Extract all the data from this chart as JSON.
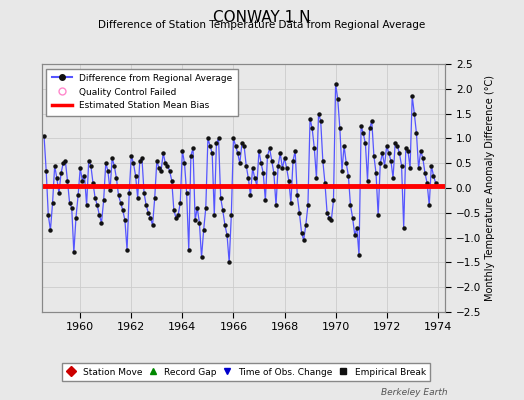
{
  "title": "CONWAY 1 N",
  "subtitle": "Difference of Station Temperature Data from Regional Average",
  "ylabel": "Monthly Temperature Anomaly Difference (°C)",
  "watermark": "Berkeley Earth",
  "xlim": [
    1958.5,
    1974.3
  ],
  "ylim": [
    -2.5,
    2.5
  ],
  "yticks": [
    -2.5,
    -2,
    -1.5,
    -1,
    -0.5,
    0,
    0.5,
    1,
    1.5,
    2,
    2.5
  ],
  "xticks": [
    1960,
    1962,
    1964,
    1966,
    1968,
    1970,
    1972,
    1974
  ],
  "bias_value": 0.04,
  "bg_color": "#e8e8e8",
  "plot_bg_color": "#e8e8e8",
  "line_color": "#5555ff",
  "dot_color": "#111111",
  "bias_color": "#ff0000",
  "grid_color": "#cccccc",
  "legend1_items": [
    {
      "label": "Difference from Regional Average",
      "lcolor": "#0000cc",
      "mcolor": "#111111"
    },
    {
      "label": "Quality Control Failed",
      "lcolor": "none",
      "mcolor": "#ff88cc"
    },
    {
      "label": "Estimated Station Mean Bias",
      "lcolor": "#ff0000",
      "mcolor": "none"
    }
  ],
  "legend2_items": [
    {
      "label": "Station Move",
      "color": "#cc0000",
      "marker": "D"
    },
    {
      "label": "Record Gap",
      "color": "#008800",
      "marker": "^"
    },
    {
      "label": "Time of Obs. Change",
      "color": "#0000cc",
      "marker": "v"
    },
    {
      "label": "Empirical Break",
      "color": "#111111",
      "marker": "s"
    }
  ],
  "data_years": [
    1958.583,
    1958.667,
    1958.75,
    1958.833,
    1958.917,
    1959.0,
    1959.083,
    1959.167,
    1959.25,
    1959.333,
    1959.417,
    1959.5,
    1959.583,
    1959.667,
    1959.75,
    1959.833,
    1959.917,
    1960.0,
    1960.083,
    1960.167,
    1960.25,
    1960.333,
    1960.417,
    1960.5,
    1960.583,
    1960.667,
    1960.75,
    1960.833,
    1960.917,
    1961.0,
    1961.083,
    1961.167,
    1961.25,
    1961.333,
    1961.417,
    1961.5,
    1961.583,
    1961.667,
    1961.75,
    1961.833,
    1961.917,
    1962.0,
    1962.083,
    1962.167,
    1962.25,
    1962.333,
    1962.417,
    1962.5,
    1962.583,
    1962.667,
    1962.75,
    1962.833,
    1962.917,
    1963.0,
    1963.083,
    1963.167,
    1963.25,
    1963.333,
    1963.417,
    1963.5,
    1963.583,
    1963.667,
    1963.75,
    1963.833,
    1963.917,
    1964.0,
    1964.083,
    1964.167,
    1964.25,
    1964.333,
    1964.417,
    1964.5,
    1964.583,
    1964.667,
    1964.75,
    1964.833,
    1964.917,
    1965.0,
    1965.083,
    1965.167,
    1965.25,
    1965.333,
    1965.417,
    1965.5,
    1965.583,
    1965.667,
    1965.75,
    1965.833,
    1965.917,
    1966.0,
    1966.083,
    1966.167,
    1966.25,
    1966.333,
    1966.417,
    1966.5,
    1966.583,
    1966.667,
    1966.75,
    1966.833,
    1966.917,
    1967.0,
    1967.083,
    1967.167,
    1967.25,
    1967.333,
    1967.417,
    1967.5,
    1967.583,
    1967.667,
    1967.75,
    1967.833,
    1967.917,
    1968.0,
    1968.083,
    1968.167,
    1968.25,
    1968.333,
    1968.417,
    1968.5,
    1968.583,
    1968.667,
    1968.75,
    1968.833,
    1968.917,
    1969.0,
    1969.083,
    1969.167,
    1969.25,
    1969.333,
    1969.417,
    1969.5,
    1969.583,
    1969.667,
    1969.75,
    1969.833,
    1969.917,
    1970.0,
    1970.083,
    1970.167,
    1970.25,
    1970.333,
    1970.417,
    1970.5,
    1970.583,
    1970.667,
    1970.75,
    1970.833,
    1970.917,
    1971.0,
    1971.083,
    1971.167,
    1971.25,
    1971.333,
    1971.417,
    1971.5,
    1971.583,
    1971.667,
    1971.75,
    1971.833,
    1971.917,
    1972.0,
    1972.083,
    1972.167,
    1972.25,
    1972.333,
    1972.417,
    1972.5,
    1972.583,
    1972.667,
    1972.75,
    1972.833,
    1972.917,
    1973.0,
    1973.083,
    1973.167,
    1973.25,
    1973.333,
    1973.417,
    1973.5,
    1973.583,
    1973.667,
    1973.75,
    1973.833,
    1973.917
  ],
  "data_values": [
    1.05,
    0.35,
    -0.55,
    -0.85,
    -0.3,
    0.45,
    0.2,
    -0.1,
    0.3,
    0.5,
    0.55,
    0.15,
    -0.3,
    -0.4,
    -1.3,
    -0.6,
    -0.15,
    0.4,
    0.15,
    0.25,
    -0.35,
    0.55,
    0.45,
    0.1,
    -0.2,
    -0.35,
    -0.55,
    -0.7,
    -0.25,
    0.5,
    0.35,
    -0.05,
    0.6,
    0.45,
    0.2,
    -0.15,
    -0.3,
    -0.45,
    -0.65,
    -1.25,
    -0.1,
    0.65,
    0.5,
    0.25,
    -0.2,
    0.55,
    0.6,
    -0.1,
    -0.35,
    -0.5,
    -0.6,
    -0.75,
    -0.2,
    0.55,
    0.4,
    0.35,
    0.7,
    0.5,
    0.45,
    0.35,
    0.15,
    -0.45,
    -0.6,
    -0.55,
    -0.3,
    0.75,
    0.5,
    -0.1,
    -1.25,
    0.65,
    0.8,
    -0.65,
    -0.4,
    -0.7,
    -1.4,
    -0.85,
    -0.4,
    1.0,
    0.85,
    0.7,
    -0.55,
    0.9,
    1.0,
    -0.2,
    -0.45,
    -0.75,
    -0.95,
    -1.5,
    -0.55,
    1.0,
    0.85,
    0.7,
    0.5,
    0.9,
    0.85,
    0.45,
    0.2,
    -0.15,
    0.4,
    0.2,
    0.05,
    0.75,
    0.5,
    0.3,
    -0.25,
    0.65,
    0.8,
    0.55,
    0.3,
    -0.35,
    0.45,
    0.7,
    0.4,
    0.6,
    0.4,
    0.15,
    -0.3,
    0.55,
    0.75,
    -0.15,
    -0.5,
    -0.9,
    -1.05,
    -0.75,
    -0.35,
    1.4,
    1.2,
    0.8,
    0.2,
    1.5,
    1.35,
    0.55,
    0.1,
    -0.5,
    -0.6,
    -0.65,
    -0.25,
    2.1,
    1.8,
    1.2,
    0.35,
    0.85,
    0.5,
    0.25,
    -0.35,
    -0.6,
    -0.95,
    -0.8,
    -1.35,
    1.25,
    1.1,
    0.9,
    0.15,
    1.2,
    1.35,
    0.65,
    0.3,
    -0.55,
    0.5,
    0.7,
    0.45,
    0.85,
    0.7,
    0.55,
    0.2,
    0.9,
    0.85,
    0.7,
    0.45,
    -0.8,
    0.8,
    0.75,
    0.4,
    1.85,
    1.5,
    1.1,
    0.4,
    0.75,
    0.6,
    0.3,
    0.1,
    -0.35,
    0.45,
    0.25,
    0.1
  ]
}
